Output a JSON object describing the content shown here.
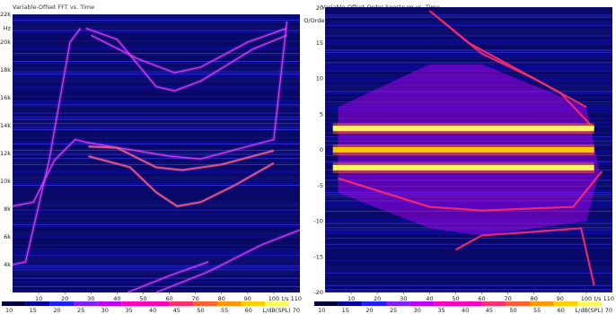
{
  "chart_data": [
    {
      "type": "heatmap",
      "title": "Variable-Offset FFT vs. Time",
      "x_ticks": [
        "10",
        "20",
        "30",
        "40",
        "50",
        "60",
        "70",
        "80",
        "90",
        "100"
      ],
      "x_end_label": "t/s 110",
      "y_unit": "Hz",
      "y_ticks": [
        "22k",
        "20k",
        "18k",
        "16k",
        "14k",
        "12k",
        "10k",
        "8k",
        "6k",
        "4k"
      ],
      "colorbar": {
        "label": "L/dB(SPL) 70",
        "ticks": [
          "10",
          "15",
          "20",
          "25",
          "30",
          "35",
          "40",
          "45",
          "50",
          "55",
          "60"
        ]
      },
      "xlim": [
        0,
        110
      ],
      "ylim": [
        2000,
        22000
      ],
      "traces": [
        {
          "name": "",
          "points": [
            [
              0,
              8200
            ],
            [
              8,
              8500
            ],
            [
              16,
              11500
            ],
            [
              24,
              13000
            ],
            [
              28,
              12800
            ],
            [
              60,
              11800
            ],
            [
              72,
              11600
            ],
            [
              100,
              13000
            ],
            [
              105,
              21500
            ]
          ]
        },
        {
          "name": "",
          "points": [
            [
              29,
              12500
            ],
            [
              40,
              12400
            ],
            [
              55,
              11000
            ],
            [
              65,
              10800
            ],
            [
              80,
              11200
            ],
            [
              100,
              12200
            ]
          ]
        },
        {
          "name": "",
          "points": [
            [
              29,
              11800
            ],
            [
              45,
              11000
            ],
            [
              55,
              9200
            ],
            [
              63,
              8200
            ],
            [
              72,
              8500
            ],
            [
              85,
              9700
            ],
            [
              100,
              11300
            ]
          ]
        },
        {
          "name": "",
          "points": [
            [
              0,
              4000
            ],
            [
              5,
              4200
            ],
            [
              14,
              11500
            ],
            [
              22,
              20000
            ],
            [
              26,
              21000
            ]
          ]
        },
        {
          "name": "",
          "points": [
            [
              30,
              20500
            ],
            [
              48,
              18800
            ],
            [
              62,
              17800
            ],
            [
              72,
              18200
            ],
            [
              90,
              20000
            ],
            [
              105,
              21000
            ]
          ]
        },
        {
          "name": "",
          "points": [
            [
              28,
              21000
            ],
            [
              40,
              20200
            ],
            [
              55,
              16800
            ],
            [
              62,
              16500
            ],
            [
              72,
              17200
            ],
            [
              92,
              19500
            ],
            [
              105,
              20500
            ]
          ]
        },
        {
          "name": "",
          "points": [
            [
              55,
              2000
            ],
            [
              75,
              3500
            ],
            [
              95,
              5400
            ],
            [
              110,
              6500
            ]
          ]
        },
        {
          "name": "",
          "points": [
            [
              44,
              2000
            ],
            [
              60,
              3200
            ],
            [
              75,
              4200
            ]
          ]
        }
      ]
    },
    {
      "type": "heatmap",
      "title": "Variable-Offset Order Spectrum vs. Time",
      "x_ticks": [
        "10",
        "20",
        "30",
        "40",
        "50",
        "60",
        "70",
        "80",
        "90",
        "100"
      ],
      "x_end_label": "t/s 110",
      "y_unit": "O/Order",
      "y_ticks": [
        "15",
        "10",
        "5",
        "0",
        "-5",
        "-10",
        "-15",
        "-20"
      ],
      "y_top_label": "20",
      "colorbar": {
        "label": "L/dB(SPL) 70",
        "ticks": [
          "10",
          "15",
          "20",
          "25",
          "30",
          "35",
          "40",
          "45",
          "50",
          "55",
          "60"
        ]
      },
      "xlim": [
        0,
        110
      ],
      "ylim": [
        -20,
        20
      ],
      "bands": [
        {
          "name": "",
          "order": 3,
          "t_start": 3,
          "t_end": 103,
          "level": 0.95
        },
        {
          "name": "",
          "order": 0,
          "t_start": 3,
          "t_end": 103,
          "level": 0.85
        },
        {
          "name": "",
          "order": -2.5,
          "t_start": 3,
          "t_end": 103,
          "level": 1.0
        }
      ],
      "traces": [
        {
          "name": "",
          "points": [
            [
              40,
              19.5
            ],
            [
              55,
              15
            ],
            [
              70,
              12
            ],
            [
              90,
              8
            ],
            [
              103,
              3
            ]
          ]
        },
        {
          "name": "",
          "points": [
            [
              45,
              18
            ],
            [
              60,
              13.5
            ],
            [
              80,
              10
            ],
            [
              100,
              6
            ]
          ]
        },
        {
          "name": "",
          "points": [
            [
              50,
              -14
            ],
            [
              60,
              -12
            ],
            [
              80,
              -11.5
            ],
            [
              98,
              -11
            ],
            [
              103,
              -19
            ]
          ]
        },
        {
          "name": "",
          "points": [
            [
              5,
              -4
            ],
            [
              40,
              -8
            ],
            [
              60,
              -8.5
            ],
            [
              95,
              -8
            ],
            [
              106,
              -3
            ]
          ]
        }
      ]
    }
  ],
  "palette": [
    "#000040",
    "#0000a0",
    "#2020ff",
    "#8020ff",
    "#c000ff",
    "#ff00c0",
    "#ff3070",
    "#ff6030",
    "#ff9800",
    "#ffd000",
    "#ffff60"
  ]
}
